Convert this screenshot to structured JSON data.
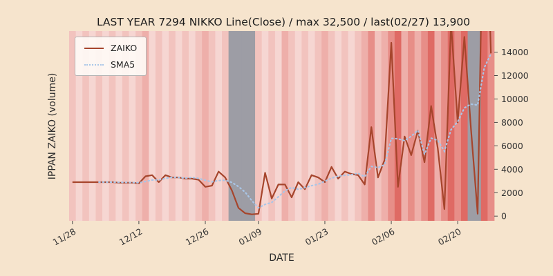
{
  "figure": {
    "bg_color": "#f6e4cd"
  },
  "chart_data": {
    "type": "line",
    "title": "LAST YEAR 7294 NIKKO Line(Close) / max 32,500 / last(02/27) 13,900",
    "xlabel": "DATE",
    "ylabel": "IPPAN ZAIKO (volume)",
    "x_tick_labels": [
      "11/28",
      "12/12",
      "12/26",
      "01/09",
      "01/23",
      "02/06",
      "02/20"
    ],
    "x_tick_indices": [
      0,
      10,
      20,
      28,
      38,
      48,
      58
    ],
    "y_ticks": [
      0,
      2000,
      4000,
      6000,
      8000,
      10000,
      12000,
      14000
    ],
    "ylim": [
      -400,
      15800
    ],
    "grid": false,
    "legend_position": "upper-left",
    "legend": [
      {
        "label": "ZAIKO",
        "style": "solid",
        "color": "#a6452c"
      },
      {
        "label": "SMA5",
        "style": "dotted",
        "color": "#a9c6e8"
      }
    ],
    "dates": [
      "11/28",
      "11/29",
      "11/30",
      "12/01",
      "12/02",
      "12/05",
      "12/06",
      "12/07",
      "12/08",
      "12/09",
      "12/12",
      "12/13",
      "12/14",
      "12/15",
      "12/16",
      "12/19",
      "12/20",
      "12/21",
      "12/22",
      "12/23",
      "12/26",
      "12/27",
      "12/28",
      "12/29",
      "12/30",
      "01/04",
      "01/05",
      "01/06",
      "01/09",
      "01/10",
      "01/11",
      "01/12",
      "01/13",
      "01/16",
      "01/17",
      "01/18",
      "01/19",
      "01/20",
      "01/23",
      "01/24",
      "01/25",
      "01/26",
      "01/27",
      "01/30",
      "01/31",
      "02/01",
      "02/02",
      "02/03",
      "02/06",
      "02/07",
      "02/08",
      "02/09",
      "02/10",
      "02/13",
      "02/14",
      "02/15",
      "02/16",
      "02/17",
      "02/20",
      "02/21",
      "02/22",
      "02/24",
      "02/26",
      "02/27"
    ],
    "series": [
      {
        "name": "ZAIKO",
        "color": "#a6452c",
        "values": [
          2900,
          2900,
          2900,
          2900,
          2900,
          2900,
          2900,
          2850,
          2850,
          2850,
          2800,
          3400,
          3500,
          2900,
          3500,
          3300,
          3300,
          3200,
          3200,
          3100,
          2500,
          2600,
          3800,
          3300,
          2200,
          700,
          250,
          150,
          200,
          3700,
          1500,
          2700,
          2700,
          1600,
          2900,
          2300,
          3500,
          3300,
          2900,
          4200,
          3200,
          3800,
          3600,
          3500,
          2700,
          7600,
          3300,
          4800,
          14800,
          2500,
          6800,
          5200,
          7300,
          4600,
          9400,
          5800,
          600,
          16500,
          8000,
          15300,
          7400,
          200,
          32500,
          13900
        ]
      },
      {
        "name": "SMA5",
        "color": "#a9c6e8",
        "derived": "sma",
        "window": 5,
        "source": "ZAIKO"
      }
    ],
    "annotations": {
      "max_value": "32,500",
      "last_date": "02/27",
      "last_value": "13,900"
    },
    "background": {
      "heat": [
        "1",
        "0",
        "1",
        "0",
        "1",
        "0",
        "1",
        "0",
        "1",
        "0",
        "1",
        "2",
        "0",
        "1",
        "0",
        "1",
        "0",
        "1",
        "0",
        "1",
        "2",
        "1",
        "0",
        "1",
        "g",
        "g",
        "g",
        "g",
        "1",
        "0",
        "1",
        "0",
        "2",
        "1",
        "0",
        "1",
        "0",
        "1",
        "2",
        "1",
        "0",
        "1",
        "0",
        "1",
        "2",
        "3",
        "1",
        "2",
        "3",
        "4",
        "2",
        "3",
        "2",
        "3",
        "4",
        "2",
        "3",
        "4",
        "3",
        "4",
        "g",
        "g",
        "4",
        "3"
      ],
      "palette": {
        "0": "#f6d6d2",
        "1": "#f2c3be",
        "2": "#eeafaa",
        "3": "#e78e88",
        "4": "#df6a64",
        "g": "#9d9da5"
      }
    }
  }
}
